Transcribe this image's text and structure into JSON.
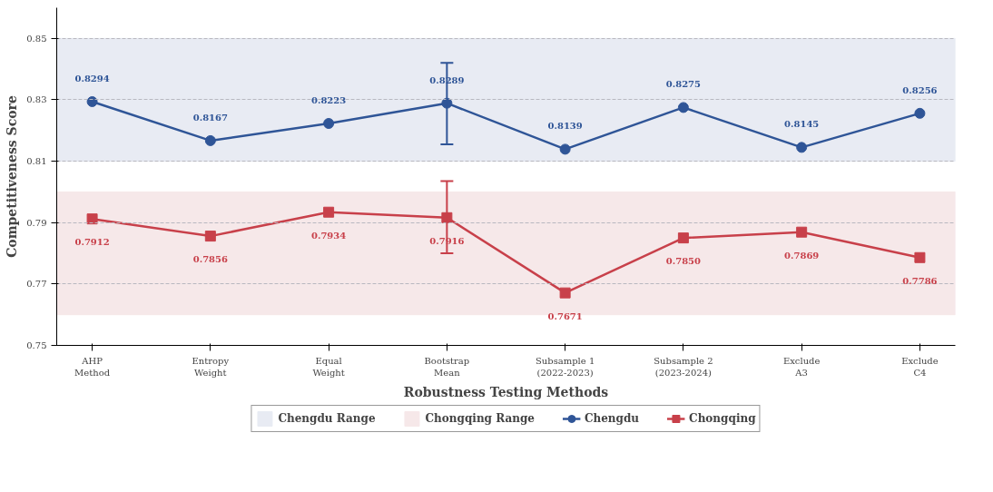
{
  "chart_data": {
    "type": "line",
    "xlabel": "Robustness Testing Methods",
    "ylabel": "Competitiveness Score",
    "categories": [
      "AHP\nMethod",
      "Entropy\nWeight",
      "Equal\nWeight",
      "Bootstrap\nMean",
      "Subsample 1\n(2022-2023)",
      "Subsample 2\n(2023-2024)",
      "Exclude\nA3",
      "Exclude\nC4"
    ],
    "series": [
      {
        "name": "Chengdu",
        "color": "#2f5597",
        "marker": "circle",
        "values": [
          0.8294,
          0.8167,
          0.8223,
          0.8289,
          0.8139,
          0.8275,
          0.8145,
          0.8256
        ],
        "value_labels": [
          "0.8294",
          "0.8167",
          "0.8223",
          "0.8289",
          "0.8139",
          "0.8275",
          "0.8145",
          "0.8256"
        ],
        "errors": [
          null,
          null,
          null,
          [
            0.8155,
            0.842
          ],
          null,
          null,
          null,
          null
        ]
      },
      {
        "name": "Chongqing",
        "color": "#c8404a",
        "marker": "square",
        "values": [
          0.7912,
          0.7856,
          0.7934,
          0.7916,
          0.7671,
          0.785,
          0.7869,
          0.7786
        ],
        "value_labels": [
          "0.7912",
          "0.7856",
          "0.7934",
          "0.7916",
          "0.7671",
          "0.7850",
          "0.7869",
          "0.7786"
        ],
        "errors": [
          null,
          null,
          null,
          [
            0.78,
            0.8035
          ],
          null,
          null,
          null,
          null
        ]
      }
    ],
    "bands": [
      {
        "axis": "y",
        "from": 0.81,
        "to": 0.85,
        "label": "Chengdu Range",
        "color": "#e8ebf3"
      },
      {
        "axis": "y",
        "from": 0.76,
        "to": 0.8,
        "label": "Chongqing Range",
        "color": "#f6e8e9"
      }
    ],
    "ylim": [
      0.75,
      0.86
    ],
    "yticks": [
      0.75,
      0.77,
      0.79,
      0.81,
      0.83,
      0.85
    ],
    "grid": "y",
    "legend": "bottom",
    "line_style": "solid"
  }
}
